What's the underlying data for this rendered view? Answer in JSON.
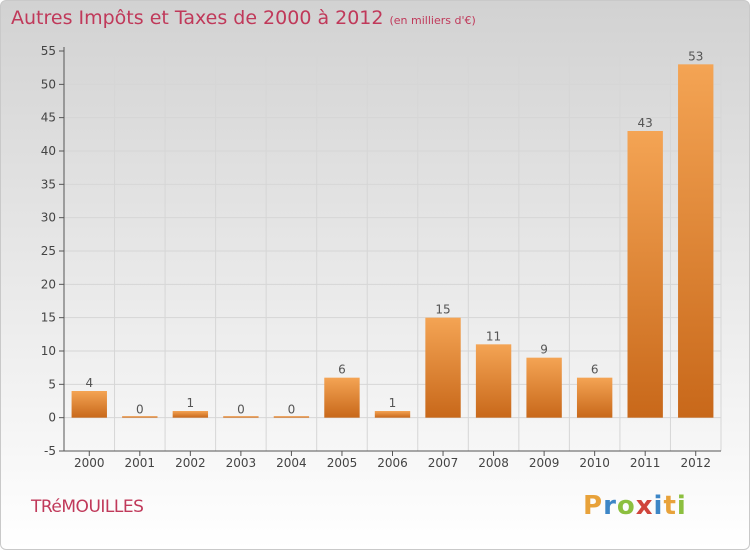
{
  "title": "Autres Impôts et Taxes de 2000 à 2012",
  "subtitle": "(en milliers d'€)",
  "commune": "TRéMOUILLES",
  "logo": {
    "letters": [
      "P",
      "r",
      "o",
      "x",
      "i",
      "t",
      "i"
    ],
    "colors": [
      "#e8a23a",
      "#3d86c6",
      "#8cbf3f",
      "#d0443b",
      "#3d86c6",
      "#e8a23a",
      "#8cbf3f"
    ]
  },
  "colors": {
    "bar": "#e8882a",
    "bar_light": "#f4a454",
    "bar_dark": "#c8681a",
    "grid": "#d6d6d6"
  },
  "chart_data": {
    "type": "bar",
    "categories": [
      "2000",
      "2001",
      "2002",
      "2003",
      "2004",
      "2005",
      "2006",
      "2007",
      "2008",
      "2009",
      "2010",
      "2011",
      "2012"
    ],
    "values": [
      4,
      0,
      1,
      0,
      0,
      6,
      1,
      15,
      11,
      9,
      6,
      43,
      53
    ],
    "data_labels": [
      "4",
      "0",
      "1",
      "0",
      "0",
      "6",
      "1",
      "15",
      "11",
      "9",
      "6",
      "43",
      "53"
    ],
    "yticks": [
      -5,
      0,
      5,
      10,
      15,
      20,
      25,
      30,
      35,
      40,
      45,
      50,
      55
    ],
    "ylim": [
      -5,
      55
    ],
    "grid": true,
    "xlabel": "",
    "ylabel": ""
  }
}
